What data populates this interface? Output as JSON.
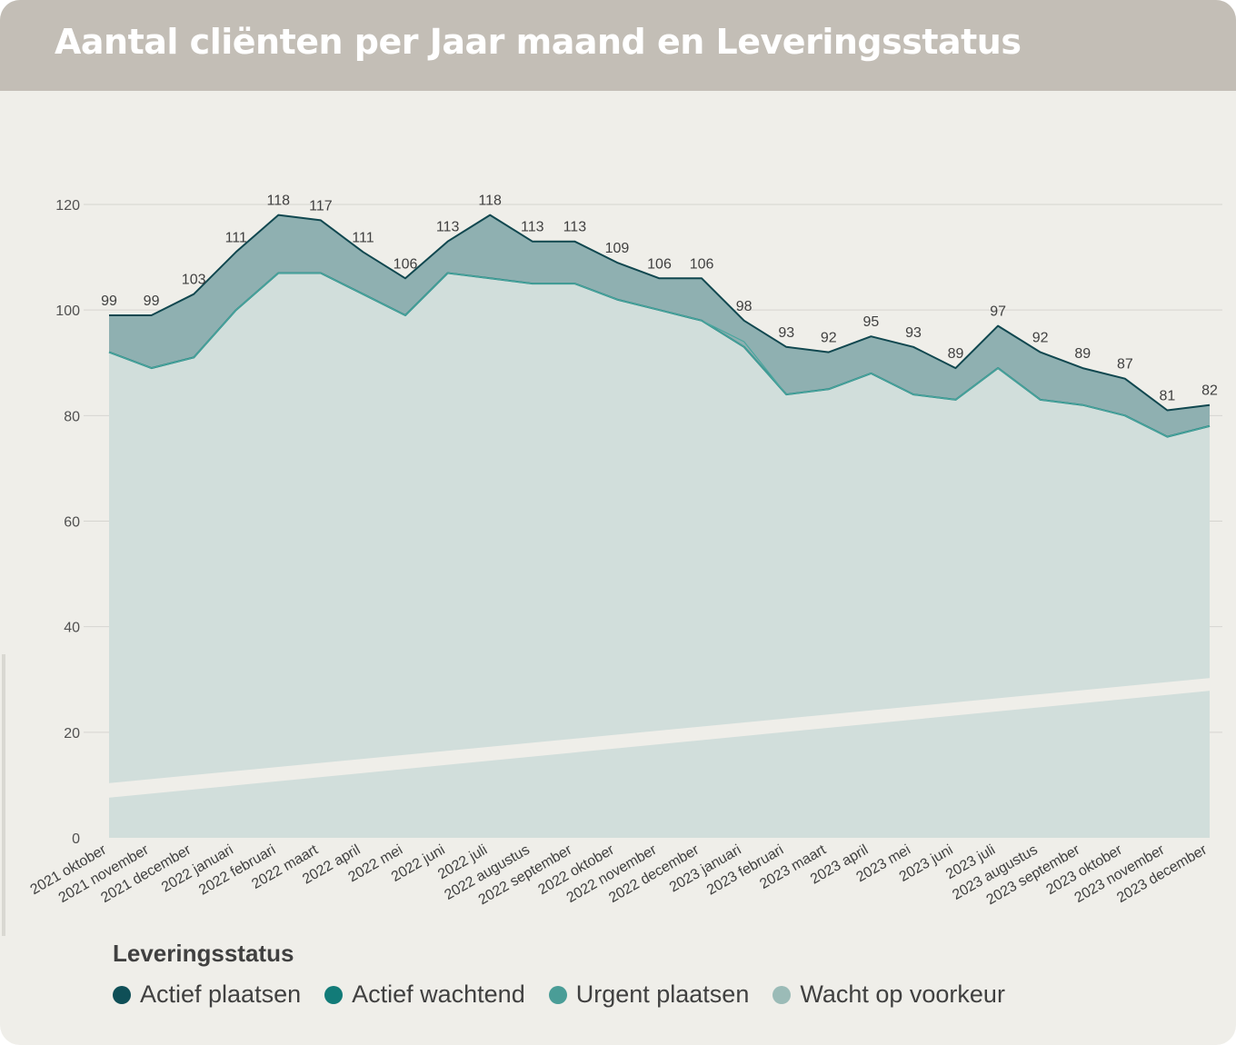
{
  "header": {
    "title": "Aantal cliënten per Jaar maand en Leveringsstatus"
  },
  "chart_data": {
    "type": "area",
    "title": "Aantal cliënten per Jaar maand en Leveringsstatus",
    "xlabel": "",
    "ylabel": "",
    "ylim": [
      0,
      120
    ],
    "yticks": [
      0,
      20,
      40,
      60,
      80,
      100,
      120
    ],
    "grid": true,
    "legend_title": "Leveringsstatus",
    "legend_position": "bottom-left",
    "categories": [
      "2021 oktober",
      "2021 november",
      "2021 december",
      "2022 januari",
      "2022 februari",
      "2022 maart",
      "2022 april",
      "2022 mei",
      "2022 juni",
      "2022 juli",
      "2022 augustus",
      "2022 september",
      "2022 oktober",
      "2022 november",
      "2022 december",
      "2023 januari",
      "2023 februari",
      "2023 maart",
      "2023 april",
      "2023 mei",
      "2023 juni",
      "2023 juli",
      "2023 augustus",
      "2023 september",
      "2023 oktober",
      "2023 november",
      "2023 december"
    ],
    "totals": [
      99,
      99,
      103,
      111,
      118,
      117,
      111,
      106,
      113,
      118,
      113,
      113,
      109,
      106,
      106,
      98,
      93,
      92,
      95,
      93,
      89,
      97,
      92,
      89,
      87,
      81,
      82
    ],
    "series": [
      {
        "name": "Actief plaatsen",
        "color": "#0f4f57",
        "values": [
          7,
          10,
          12,
          11,
          11,
          10,
          8,
          7,
          6,
          12,
          8,
          8,
          7,
          6,
          8,
          4,
          9,
          7,
          7,
          9,
          6,
          8,
          9,
          7,
          7,
          5,
          4
        ]
      },
      {
        "name": "Actief wachtend",
        "color": "#127b78",
        "values": [
          0,
          0,
          0,
          0,
          0,
          0,
          0,
          0,
          0,
          0,
          0,
          0,
          0,
          0,
          0,
          1,
          0,
          0,
          0,
          0,
          0,
          0,
          0,
          0,
          0,
          0,
          0
        ]
      },
      {
        "name": "Urgent plaatsen",
        "color": "#4a9d97",
        "values": [
          0,
          0,
          0,
          0,
          0,
          0,
          0,
          0,
          0,
          0,
          0,
          0,
          0,
          0,
          0,
          0,
          0,
          0,
          0,
          0,
          0,
          0,
          0,
          0,
          0,
          0,
          0
        ]
      },
      {
        "name": "Wacht op voorkeur",
        "color": "#9bbbb7",
        "values": [
          92,
          89,
          91,
          100,
          107,
          107,
          103,
          99,
          107,
          106,
          105,
          105,
          102,
          100,
          98,
          93,
          84,
          85,
          88,
          84,
          83,
          89,
          83,
          82,
          80,
          76,
          78
        ]
      }
    ]
  }
}
